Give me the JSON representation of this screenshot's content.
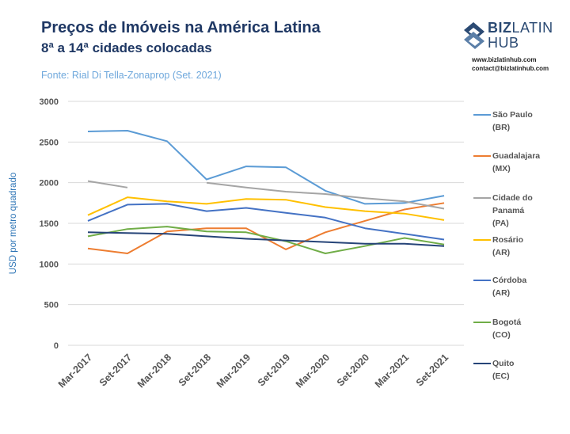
{
  "header": {
    "title": "Preços de Imóveis na América Latina",
    "subtitle": "8ª a 14ª cidades colocadas",
    "source": "Fonte: Rial Di Tella-Zonaprop (Set. 2021)"
  },
  "brand": {
    "logo_line1_bold": "BIZ",
    "logo_line1_light": "LATIN",
    "logo_line2": "HUB",
    "website": "www.bizlatinhub.com",
    "email": "contact@bizlatinhub.com",
    "color": "#2b4a73"
  },
  "chart_data": {
    "type": "line",
    "title": "Preços de Imóveis na América Latina",
    "subtitle": "8ª a 14ª cidades colocadas",
    "ylabel": "USD por metro quadrado",
    "xlabel": "",
    "ylim": [
      0,
      3000
    ],
    "yticks": [
      "0",
      "500",
      "1000",
      "1500",
      "2000",
      "2500",
      "3000"
    ],
    "grid": true,
    "legend_position": "right",
    "categories": [
      "Mar-2017",
      "Set-2017",
      "Mar-2018",
      "Set-2018",
      "Mar-2019",
      "Set-2019",
      "Mar-2020",
      "Set-2020",
      "Mar-2021",
      "Set-2021"
    ],
    "series": [
      {
        "name": "São Paulo",
        "code": "(BR)",
        "color": "#5b9bd5",
        "values": [
          2630,
          2640,
          2510,
          2040,
          2200,
          2190,
          1900,
          1740,
          1750,
          1840
        ]
      },
      {
        "name": "Guadalajara",
        "code": "(MX)",
        "color": "#ed7d31",
        "values": [
          1190,
          1130,
          1400,
          1440,
          1440,
          1180,
          1390,
          1530,
          1670,
          1750
        ]
      },
      {
        "name": "Cidade do Panamá",
        "name_lines": [
          "Cidade do",
          "Panamá"
        ],
        "code": "(PA)",
        "color": "#a5a5a5",
        "values": [
          2020,
          1940,
          null,
          2000,
          1940,
          1890,
          1860,
          1810,
          1770,
          1680
        ]
      },
      {
        "name": "Rosário",
        "code": "(AR)",
        "color": "#ffc000",
        "values": [
          1600,
          1820,
          1770,
          1740,
          1800,
          1790,
          1700,
          1650,
          1620,
          1540
        ]
      },
      {
        "name": "Córdoba",
        "code": "(AR)",
        "color": "#4472c4",
        "values": [
          1530,
          1730,
          1740,
          1650,
          1690,
          1630,
          1570,
          1440,
          1370,
          1300
        ]
      },
      {
        "name": "Bogotá",
        "code": "(CO)",
        "color": "#70ad47",
        "values": [
          1340,
          1430,
          1460,
          1400,
          1390,
          1280,
          1130,
          1220,
          1320,
          1240
        ]
      },
      {
        "name": "Quito",
        "code": "(EC)",
        "color": "#264478",
        "values": [
          1390,
          1380,
          1370,
          1340,
          1310,
          1290,
          1270,
          1250,
          1250,
          1220
        ]
      }
    ]
  }
}
